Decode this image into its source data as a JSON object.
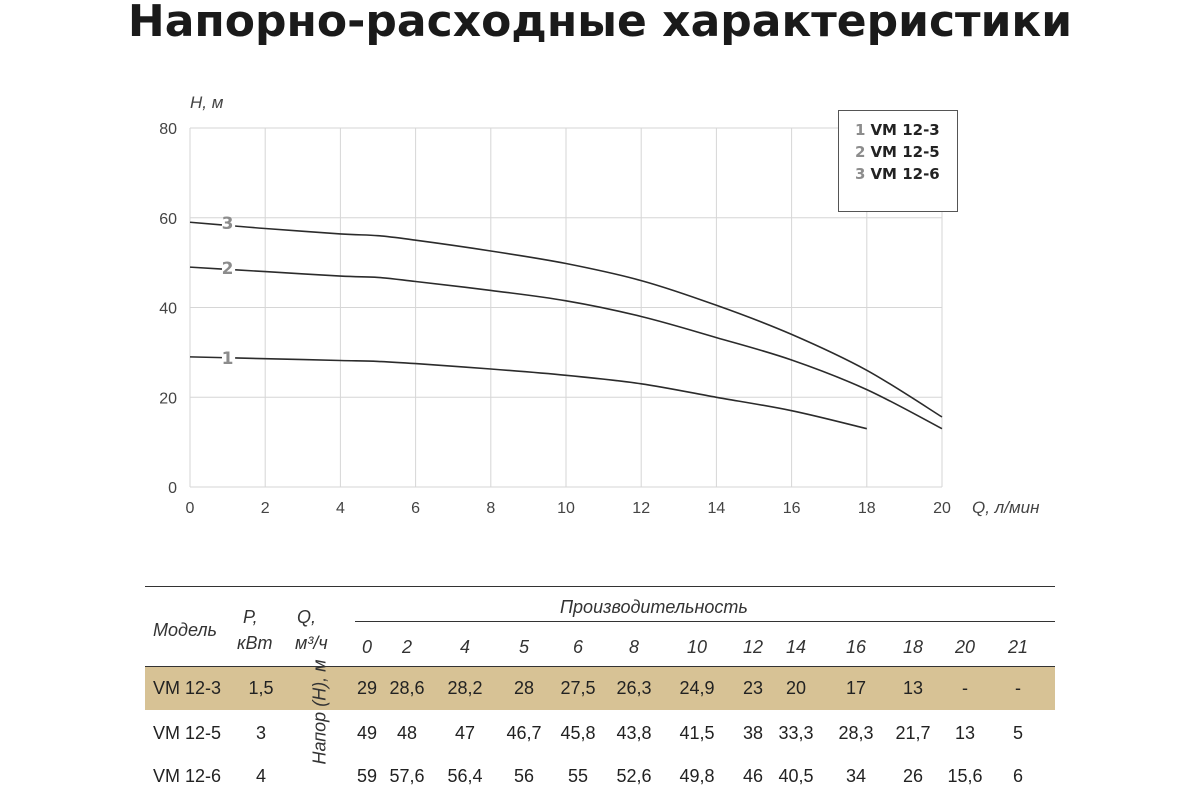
{
  "page_title": "Напорно-расходные характеристики",
  "chart_data": {
    "type": "line",
    "xlabel": "Q, л/мин",
    "ylabel": "H, м",
    "xlim": [
      0,
      20
    ],
    "ylim": [
      0,
      80
    ],
    "x_ticks": [
      "0",
      "2",
      "4",
      "6",
      "8",
      "10",
      "12",
      "14",
      "16",
      "18",
      "20"
    ],
    "y_ticks": [
      "0",
      "20",
      "40",
      "60",
      "80"
    ],
    "grid": true,
    "legend_position": "top-right",
    "series": [
      {
        "name": "VM 12-3",
        "label": "1",
        "color": "#2b2b2b",
        "x": [
          0,
          2,
          4,
          5,
          6,
          8,
          10,
          12,
          14,
          16,
          18
        ],
        "y": [
          29,
          28.6,
          28.2,
          28,
          27.5,
          26.3,
          24.9,
          23,
          20,
          17,
          13
        ]
      },
      {
        "name": "VM 12-5",
        "label": "2",
        "color": "#2b2b2b",
        "x": [
          0,
          2,
          4,
          5,
          6,
          8,
          10,
          12,
          14,
          16,
          18,
          20
        ],
        "y": [
          49,
          48,
          47,
          46.7,
          45.8,
          43.8,
          41.5,
          38,
          33.3,
          28.3,
          21.7,
          13
        ]
      },
      {
        "name": "VM 12-6",
        "label": "3",
        "color": "#2b2b2b",
        "x": [
          0,
          2,
          4,
          5,
          6,
          8,
          10,
          12,
          14,
          16,
          18,
          20
        ],
        "y": [
          59,
          57.6,
          56.4,
          56,
          55,
          52.6,
          49.8,
          46,
          40.5,
          34,
          26,
          15.6
        ]
      }
    ]
  },
  "legend": [
    {
      "num": "1",
      "name": "VM 12-3"
    },
    {
      "num": "2",
      "name": "VM 12-5"
    },
    {
      "num": "3",
      "name": "VM 12-6"
    }
  ],
  "table": {
    "headers": {
      "model": "Модель",
      "power_1": "P,",
      "power_2": "кВт",
      "flow_1": "Q,",
      "flow_2": "м³/ч",
      "performance": "Производительность",
      "head_label": "Напор (Н), м"
    },
    "columns": [
      "0",
      "2",
      "4",
      "5",
      "6",
      "8",
      "10",
      "12",
      "14",
      "16",
      "18",
      "20",
      "21"
    ],
    "highlight_color": "#d7c295",
    "rows": [
      {
        "model": "VM 12-3",
        "power": "1,5",
        "values": [
          "29",
          "28,6",
          "28,2",
          "28",
          "27,5",
          "26,3",
          "24,9",
          "23",
          "20",
          "17",
          "13",
          "-",
          "-"
        ]
      },
      {
        "model": "VM 12-5",
        "power": "3",
        "values": [
          "49",
          "48",
          "47",
          "46,7",
          "45,8",
          "43,8",
          "41,5",
          "38",
          "33,3",
          "28,3",
          "21,7",
          "13",
          "5"
        ]
      },
      {
        "model": "VM 12-6",
        "power": "4",
        "values": [
          "59",
          "57,6",
          "56,4",
          "56",
          "55",
          "52,6",
          "49,8",
          "46",
          "40,5",
          "34",
          "26",
          "15,6",
          "6"
        ]
      }
    ]
  }
}
